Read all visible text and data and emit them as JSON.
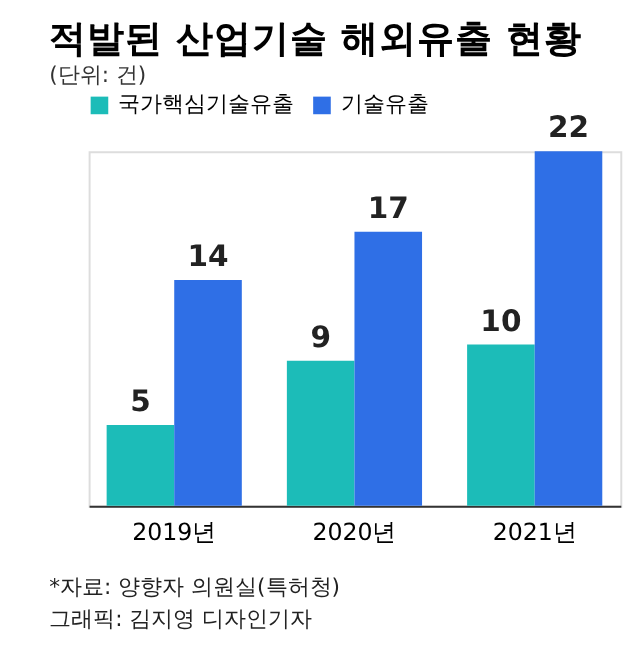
{
  "chart_data": {
    "type": "bar",
    "title": "적발된 산업기술 해외유출 현황",
    "subtitle": "(단위: 건)",
    "categories": [
      "2019년",
      "2020년",
      "2021년"
    ],
    "series": [
      {
        "name": "국가핵심기술유출",
        "color": "#1cbcb8",
        "values": [
          5,
          9,
          10
        ]
      },
      {
        "name": "기술유출",
        "color": "#2f6fe6",
        "values": [
          14,
          17,
          22
        ]
      }
    ],
    "data_labels": true,
    "legend": "top left",
    "grid": false,
    "tick_labels": "x",
    "annotations": [
      "*자료: 양향자 의원실(특허청)",
      "그래픽: 김지영 디자인기자"
    ]
  }
}
